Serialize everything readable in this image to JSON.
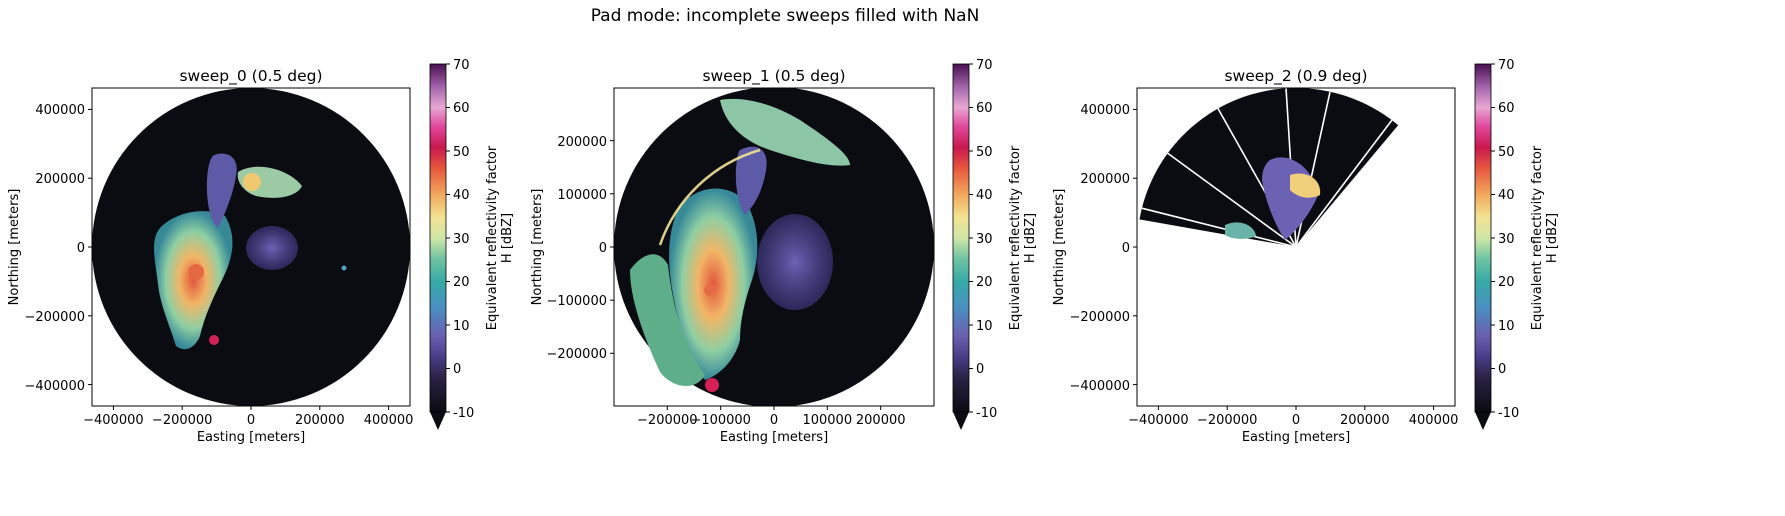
{
  "suptitle": "Pad mode: incomplete sweeps filled with NaN",
  "colors": {
    "background": "#ffffff",
    "no_echo": "#0b0b12",
    "colormap": "ChaseSpectral"
  },
  "colorbar": {
    "label_line1": "Equivalent reflectivity factor",
    "label_line2": "H [dBZ]",
    "range": [
      -10,
      70
    ],
    "ticks": [
      "70",
      "60",
      "50",
      "40",
      "30",
      "20",
      "10",
      "0",
      "-10"
    ],
    "extend": "min"
  },
  "chart_data": [
    {
      "type": "heatmap",
      "title": "sweep_0 (0.5 deg)",
      "xlabel": "Easting [meters]",
      "ylabel": "Northing [meters]",
      "xlim": [
        -460000,
        460000
      ],
      "ylim": [
        -460000,
        460000
      ],
      "xticks": [
        "−400000",
        "−200000",
        "0",
        "200000",
        "400000"
      ],
      "yticks": [
        "400000",
        "200000",
        "0",
        "−200000",
        "−400000"
      ],
      "coverage": "full 360° disc, radius ≈ 460000 m"
    },
    {
      "type": "heatmap",
      "title": "sweep_1 (0.5 deg)",
      "xlabel": "Easting [meters]",
      "ylabel": "Northing [meters]",
      "xlim": [
        -300000,
        300000
      ],
      "ylim": [
        -300000,
        300000
      ],
      "xticks": [
        "−200000",
        "−100000",
        "0",
        "100000",
        "200000"
      ],
      "yticks": [
        "200000",
        "100000",
        "0",
        "−100000",
        "−200000"
      ],
      "coverage": "full 360° disc, radius ≈ 300000 m"
    },
    {
      "type": "heatmap",
      "title": "sweep_2 (0.9 deg)",
      "xlabel": "Easting [meters]",
      "ylabel": "Northing [meters]",
      "xlim": [
        -460000,
        460000
      ],
      "ylim": [
        -460000,
        460000
      ],
      "xticks": [
        "−400000",
        "−200000",
        "0",
        "200000",
        "400000"
      ],
      "yticks": [
        "400000",
        "200000",
        "0",
        "−200000",
        "−400000"
      ],
      "coverage": "partial sector, azimuth ≈ 280°–50°, missing rays NaN"
    }
  ]
}
